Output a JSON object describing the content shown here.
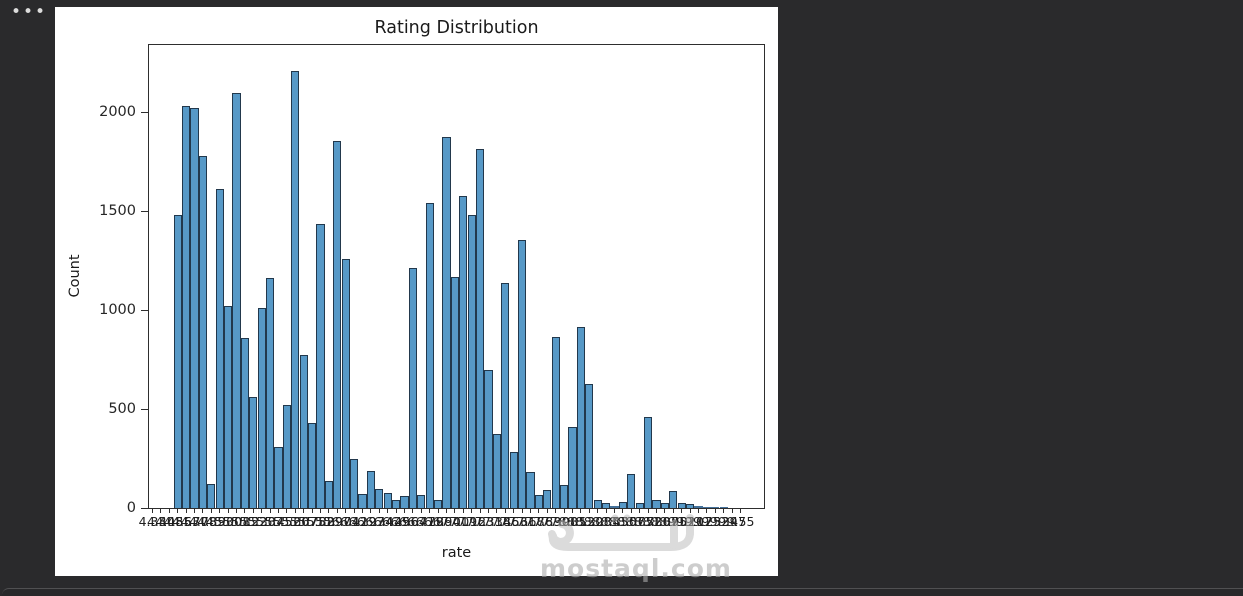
{
  "window": {
    "menu_icon_glyph": "•••"
  },
  "watermark": {
    "logo_icon": "mostaql-logo",
    "text": "mostaql.com"
  },
  "chart_data": {
    "type": "bar",
    "title": "Rating Distribution",
    "xlabel": "rate",
    "ylabel": "Count",
    "ylim": [
      0,
      2350
    ],
    "yticks": [
      0,
      500,
      1000,
      1500,
      2000
    ],
    "grid": false,
    "legend": "none",
    "bar_color": "#5799c7",
    "bar_edge_color": "#22384c",
    "x_tick_labels_overlapping": true,
    "categories": [
      "4.33",
      "4.40",
      "4.48",
      "4.55",
      "4.63",
      "4.70",
      "4.78",
      "4.85",
      "4.93",
      "5.00",
      "5.08",
      "5.15",
      "5.22",
      "5.30",
      "5.37",
      "5.45",
      "5.52",
      "5.60",
      "5.67",
      "5.75",
      "5.82",
      "5.89",
      "5.97",
      "6.04",
      "6.12",
      "6.19",
      "6.27",
      "6.34",
      "6.42",
      "6.49",
      "6.56",
      "6.64",
      "6.71",
      "6.79",
      "6.86",
      "6.94",
      "7.01",
      "7.09",
      "7.16",
      "7.23",
      "7.31",
      "7.38",
      "7.46",
      "7.53",
      "7.61",
      "7.68",
      "7.76",
      "7.83",
      "7.90",
      "7.98",
      "8.05",
      "8.13",
      "8.20",
      "8.28",
      "8.35",
      "8.43",
      "8.50",
      "8.57",
      "8.65",
      "8.72",
      "8.80",
      "8.87",
      "8.95",
      "9.02",
      "9.10",
      "9.17",
      "9.25",
      "9.32",
      "9.39",
      "9.47",
      "9.55"
    ],
    "values": [
      2,
      2,
      2,
      1480,
      2030,
      2020,
      1780,
      120,
      1615,
      1020,
      2100,
      860,
      560,
      1010,
      1165,
      310,
      520,
      2210,
      775,
      430,
      1435,
      135,
      1855,
      1260,
      250,
      70,
      185,
      95,
      75,
      40,
      60,
      1215,
      65,
      1540,
      40,
      1875,
      1170,
      1575,
      1480,
      1815,
      700,
      375,
      1140,
      285,
      1355,
      180,
      65,
      90,
      865,
      115,
      410,
      915,
      625,
      40,
      25,
      10,
      30,
      170,
      25,
      460,
      40,
      25,
      85,
      25,
      20,
      10,
      7,
      5,
      3,
      2,
      2
    ]
  },
  "colors": {
    "page_background": "#2a2a2c",
    "panel_background": "#ffffff",
    "spine": "#2e2e2e",
    "text": "#1a1a1a"
  }
}
